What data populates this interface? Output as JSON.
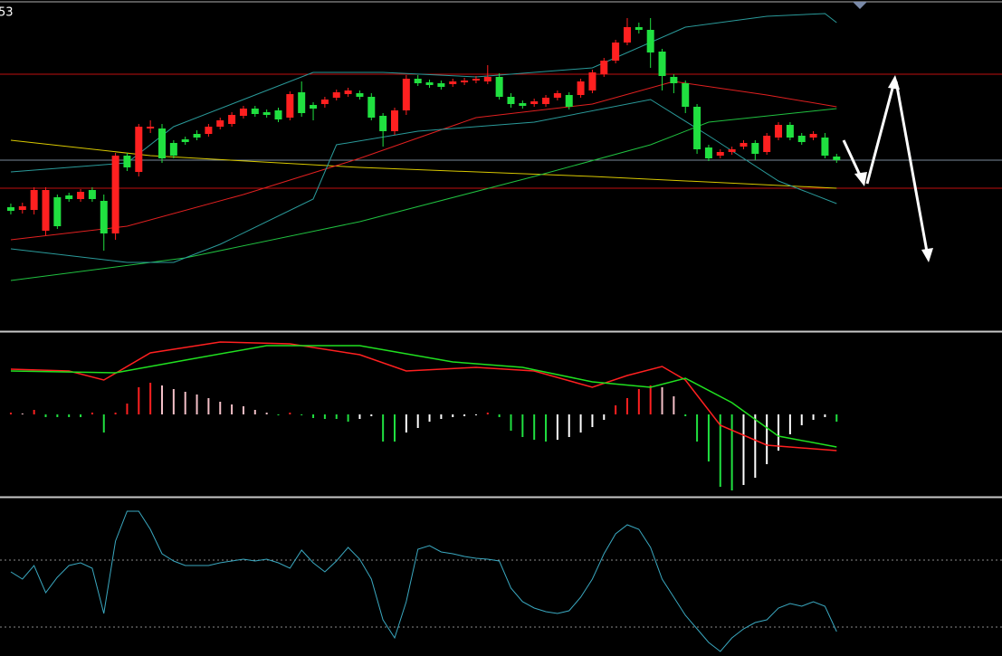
{
  "chart_data": [
    {
      "type": "candlestick",
      "annotation": "53",
      "xlim": [
        -0.93,
        85.22
      ],
      "ylim": [
        0,
        365
      ],
      "up_color": "#ff2020",
      "down_color": "#20e040",
      "candles": [
        [
          136,
          140,
          128,
          132
        ],
        [
          133,
          141,
          129,
          137
        ],
        [
          133,
          158,
          128,
          155
        ],
        [
          110,
          158,
          105,
          155
        ],
        [
          147,
          150,
          112,
          115
        ],
        [
          149,
          152,
          142,
          145
        ],
        [
          145,
          156,
          142,
          153
        ],
        [
          155,
          158,
          142,
          145
        ],
        [
          143,
          150,
          88,
          107
        ],
        [
          107,
          196,
          100,
          193
        ],
        [
          193,
          196,
          176,
          180
        ],
        [
          175,
          228,
          170,
          225
        ],
        [
          223,
          232,
          218,
          225
        ],
        [
          223,
          228,
          185,
          190
        ],
        [
          207,
          210,
          190,
          193
        ],
        [
          211,
          214,
          205,
          208
        ],
        [
          217,
          221,
          210,
          213
        ],
        [
          217,
          228,
          214,
          225
        ],
        [
          225,
          235,
          222,
          232
        ],
        [
          228,
          241,
          225,
          238
        ],
        [
          237,
          248,
          234,
          245
        ],
        [
          245,
          248,
          236,
          239
        ],
        [
          241,
          244,
          235,
          238
        ],
        [
          243,
          246,
          230,
          233
        ],
        [
          235,
          264,
          232,
          261
        ],
        [
          263,
          275,
          236,
          240
        ],
        [
          249,
          252,
          232,
          245
        ],
        [
          250,
          258,
          246,
          255
        ],
        [
          257,
          266,
          254,
          263
        ],
        [
          261,
          268,
          258,
          265
        ],
        [
          262,
          265,
          255,
          258
        ],
        [
          258,
          262,
          232,
          235
        ],
        [
          237,
          240,
          203,
          220
        ],
        [
          220,
          246,
          216,
          243
        ],
        [
          243,
          282,
          238,
          278
        ],
        [
          278,
          282,
          270,
          273
        ],
        [
          274,
          277,
          268,
          271
        ],
        [
          273,
          276,
          266,
          269
        ],
        [
          272,
          278,
          269,
          275
        ],
        [
          274,
          279,
          271,
          276
        ],
        [
          276,
          281,
          273,
          278
        ],
        [
          275,
          293,
          272,
          280
        ],
        [
          280,
          284,
          255,
          258
        ],
        [
          258,
          262,
          246,
          250
        ],
        [
          251,
          254,
          245,
          248
        ],
        [
          250,
          256,
          247,
          253
        ],
        [
          250,
          260,
          247,
          257
        ],
        [
          257,
          265,
          254,
          262
        ],
        [
          260,
          263,
          244,
          247
        ],
        [
          260,
          278,
          257,
          275
        ],
        [
          265,
          288,
          262,
          285
        ],
        [
          283,
          301,
          280,
          298
        ],
        [
          298,
          321,
          295,
          318
        ],
        [
          318,
          345,
          315,
          335
        ],
        [
          335,
          340,
          328,
          332
        ],
        [
          332,
          345,
          290,
          307
        ],
        [
          308,
          311,
          265,
          281
        ],
        [
          280,
          283,
          262,
          273
        ],
        [
          273,
          276,
          240,
          247
        ],
        [
          247,
          250,
          195,
          200
        ],
        [
          202,
          205,
          187,
          190
        ],
        [
          193,
          200,
          190,
          197
        ],
        [
          197,
          203,
          194,
          200
        ],
        [
          203,
          210,
          200,
          207
        ],
        [
          207,
          210,
          188,
          195
        ],
        [
          197,
          218,
          194,
          215
        ],
        [
          213,
          230,
          210,
          227
        ],
        [
          227,
          230,
          210,
          213
        ],
        [
          215,
          218,
          205,
          208
        ],
        [
          213,
          220,
          210,
          217
        ],
        [
          213,
          218,
          190,
          193
        ],
        [
          192,
          195,
          185,
          188
        ]
      ],
      "series": [
        {
          "color": "#d8c800",
          "x": [
            0,
            12,
            30,
            50,
            71
          ],
          "values": [
            210,
            193,
            180,
            170,
            157
          ]
        },
        {
          "color": "#e02020",
          "x": [
            0,
            10,
            20,
            30,
            40,
            50,
            57,
            65,
            71
          ],
          "values": [
            100,
            115,
            150,
            190,
            235,
            250,
            275,
            260,
            247
          ]
        },
        {
          "color": "#20c040",
          "x": [
            0,
            15,
            30,
            45,
            55,
            60,
            71
          ],
          "values": [
            55,
            80,
            120,
            170,
            205,
            230,
            245
          ]
        },
        {
          "color": "#2a9a9a",
          "x": [
            0,
            10,
            14,
            20,
            26,
            32,
            40,
            50,
            58,
            65,
            70,
            71
          ],
          "values": [
            175,
            185,
            225,
            255,
            285,
            285,
            280,
            290,
            335,
            347,
            350,
            340
          ]
        },
        {
          "color": "#2a9a9a",
          "x": [
            0,
            10,
            14,
            18,
            26,
            28,
            35,
            45,
            55,
            60,
            66,
            71
          ],
          "values": [
            90,
            75,
            75,
            95,
            145,
            205,
            220,
            230,
            255,
            215,
            165,
            140
          ]
        }
      ],
      "hlines": [
        {
          "value": 283,
          "color": "#c01010"
        },
        {
          "value": 157,
          "color": "#c01010"
        },
        {
          "value": 188,
          "color": "#7a8a9a"
        }
      ]
    },
    {
      "type": "macd",
      "xlim": [
        -0.93,
        85.22
      ],
      "ylim": [
        -90,
        90
      ],
      "values": [
        2,
        1,
        5,
        -3,
        -3,
        -3,
        -3,
        2,
        -20,
        2,
        12,
        30,
        35,
        32,
        28,
        25,
        22,
        18,
        14,
        11,
        9,
        5,
        2,
        -1,
        2,
        -1,
        -4,
        -5,
        -5,
        -8,
        -5,
        -2,
        -30,
        -30,
        -20,
        -15,
        -8,
        -5,
        -3,
        -2,
        -1,
        2,
        -3,
        -18,
        -25,
        -28,
        -30,
        -28,
        -25,
        -20,
        -14,
        -6,
        10,
        18,
        28,
        32,
        30,
        20,
        -2,
        -30,
        -52,
        -80,
        -84,
        -78,
        -70,
        -55,
        -40,
        -22,
        -12,
        -6,
        -3,
        -8
      ],
      "series": [
        {
          "color": "#ff2020",
          "x": [
            0,
            5,
            8,
            12,
            18,
            24,
            30,
            34,
            40,
            45,
            50,
            53,
            56,
            58,
            61,
            65,
            71
          ],
          "values": [
            50,
            48,
            38,
            68,
            80,
            78,
            66,
            48,
            52,
            48,
            30,
            43,
            53,
            38,
            -12,
            -34,
            -40
          ]
        },
        {
          "color": "#20e020",
          "x": [
            0,
            9,
            15,
            22,
            30,
            38,
            44,
            50,
            55,
            58,
            62,
            66,
            71
          ],
          "values": [
            48,
            46,
            60,
            76,
            76,
            58,
            52,
            36,
            30,
            40,
            13,
            -24,
            -36
          ]
        }
      ]
    },
    {
      "type": "line",
      "xlim": [
        -0.93,
        85.22
      ],
      "ylim": [
        0,
        174
      ],
      "hlines": [
        {
          "value": 106,
          "color": "#8a8a8a"
        },
        {
          "value": 32,
          "color": "#8a8a8a"
        }
      ],
      "series": [
        {
          "color": "#3aa8c0",
          "x": [
            0,
            1,
            2,
            3,
            4,
            5,
            6,
            7,
            8,
            9,
            10,
            11,
            12,
            13,
            14,
            15,
            16,
            17,
            18,
            19,
            20,
            21,
            22,
            23,
            24,
            25,
            26,
            27,
            28,
            29,
            30,
            31,
            32,
            33,
            34,
            35,
            36,
            37,
            38,
            39,
            40,
            41,
            42,
            43,
            44,
            45,
            46,
            47,
            48,
            49,
            50,
            51,
            52,
            53,
            54,
            55,
            56,
            57,
            58,
            59,
            60,
            61,
            62,
            63,
            64,
            65,
            66,
            67,
            68,
            69,
            70,
            71
          ],
          "values": [
            93,
            85,
            100,
            70,
            87,
            100,
            103,
            97,
            47,
            127,
            160,
            160,
            140,
            113,
            105,
            100,
            100,
            100,
            103,
            105,
            107,
            105,
            107,
            103,
            97,
            117,
            103,
            93,
            105,
            120,
            107,
            85,
            40,
            20,
            60,
            118,
            122,
            115,
            113,
            110,
            108,
            107,
            105,
            75,
            60,
            53,
            49,
            47,
            50,
            65,
            85,
            113,
            135,
            145,
            140,
            120,
            85,
            65,
            45,
            30,
            15,
            5,
            20,
            30,
            37,
            40,
            53,
            58,
            55,
            60,
            55,
            27
          ]
        }
      ]
    }
  ]
}
